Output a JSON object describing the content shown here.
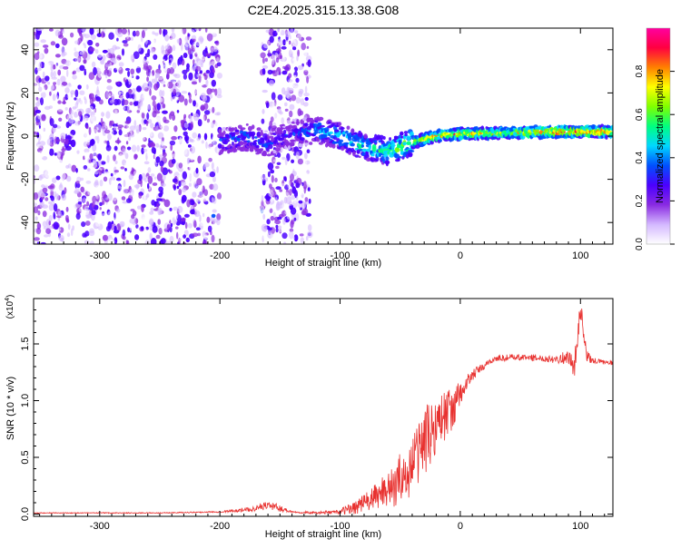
{
  "title": "C2E4.2025.315.13.38.G08",
  "chart_data": [
    {
      "type": "heatmap",
      "name": "spectrogram",
      "xlabel": "Height of straight line (km)",
      "ylabel": "Frequency (Hz)",
      "xlim": [
        -355,
        127
      ],
      "ylim": [
        -50,
        50
      ],
      "xticks": [
        -300,
        -200,
        -100,
        0,
        100
      ],
      "xtick_labels": [
        "-300",
        "-200",
        "-100",
        "0",
        "100"
      ],
      "yticks": [
        -40,
        -20,
        0,
        20,
        40
      ],
      "ytick_labels": [
        "-40",
        "-20",
        "0",
        "20",
        "40"
      ],
      "colorbar": {
        "label": "Normalized spectral amplitude",
        "range": [
          0,
          1
        ],
        "ticks": [
          0.0,
          0.2,
          0.4,
          0.6,
          0.8
        ],
        "tick_labels": [
          "0.0",
          "0.2",
          "0.4",
          "0.6",
          "0.8"
        ],
        "colors": [
          "#ffffff",
          "#d4b8ff",
          "#8a2be2",
          "#4b00ff",
          "#0050ff",
          "#00d7ff",
          "#00ff80",
          "#7fff00",
          "#ffff00",
          "#ff8000",
          "#ff0040",
          "#ff00a0"
        ]
      },
      "ridge": {
        "x": [
          -200,
          -180,
          -160,
          -140,
          -120,
          -100,
          -80,
          -60,
          -40,
          -20,
          0,
          40,
          80,
          127
        ],
        "y": [
          -3,
          0,
          -4,
          1,
          3,
          0,
          -5,
          -7,
          -3,
          0,
          1,
          1.5,
          2,
          2
        ],
        "amplitude": [
          0.35,
          0.4,
          0.35,
          0.3,
          0.45,
          0.5,
          0.55,
          0.6,
          0.7,
          0.85,
          0.8,
          0.75,
          0.9,
          0.85
        ]
      },
      "noise_regions": [
        [
          -355,
          -200
        ],
        [
          -165,
          -125
        ]
      ]
    },
    {
      "type": "line",
      "name": "snr",
      "xlabel": "Height of straight line (km)",
      "ylabel": "SNR (10 * v/v)",
      "multiplier": "(x10",
      "multiplier_exp": "4",
      "multiplier_close": ")",
      "color": "#e8312f",
      "xlim": [
        -355,
        127
      ],
      "ylim": [
        -0.02,
        1.9
      ],
      "xticks": [
        -300,
        -200,
        -100,
        0,
        100
      ],
      "xtick_labels": [
        "-300",
        "-200",
        "-100",
        "0",
        "100"
      ],
      "yticks": [
        0.0,
        0.5,
        1.0,
        1.5
      ],
      "ytick_labels": [
        "0.0",
        "0.5",
        "1.0",
        "1.5"
      ],
      "x": [
        -355,
        -300,
        -250,
        -200,
        -175,
        -160,
        -150,
        -140,
        -120,
        -100,
        -90,
        -80,
        -70,
        -60,
        -55,
        -50,
        -45,
        -40,
        -35,
        -30,
        -25,
        -20,
        -15,
        -10,
        -5,
        0,
        5,
        10,
        15,
        20,
        25,
        30,
        40,
        50,
        60,
        70,
        80,
        90,
        95,
        100,
        105,
        110,
        120,
        127
      ],
      "y": [
        0.01,
        0.01,
        0.01,
        0.02,
        0.04,
        0.08,
        0.05,
        0.02,
        0.01,
        0.02,
        0.05,
        0.1,
        0.15,
        0.25,
        0.2,
        0.35,
        0.3,
        0.45,
        0.55,
        0.65,
        0.7,
        0.8,
        0.85,
        0.9,
        0.95,
        1.05,
        1.15,
        1.22,
        1.27,
        1.3,
        1.35,
        1.37,
        1.38,
        1.38,
        1.38,
        1.37,
        1.37,
        1.38,
        1.3,
        1.82,
        1.4,
        1.35,
        1.34,
        1.33
      ],
      "noise_amplitude": [
        0.004,
        0.004,
        0.004,
        0.006,
        0.02,
        0.04,
        0.03,
        0.01,
        0.01,
        0.02,
        0.06,
        0.08,
        0.12,
        0.18,
        0.18,
        0.2,
        0.22,
        0.25,
        0.28,
        0.3,
        0.3,
        0.25,
        0.25,
        0.2,
        0.18,
        0.12,
        0.08,
        0.05,
        0.04,
        0.03,
        0.03,
        0.03,
        0.03,
        0.03,
        0.03,
        0.03,
        0.04,
        0.06,
        0.1,
        0.1,
        0.05,
        0.03,
        0.02,
        0.02
      ]
    }
  ]
}
